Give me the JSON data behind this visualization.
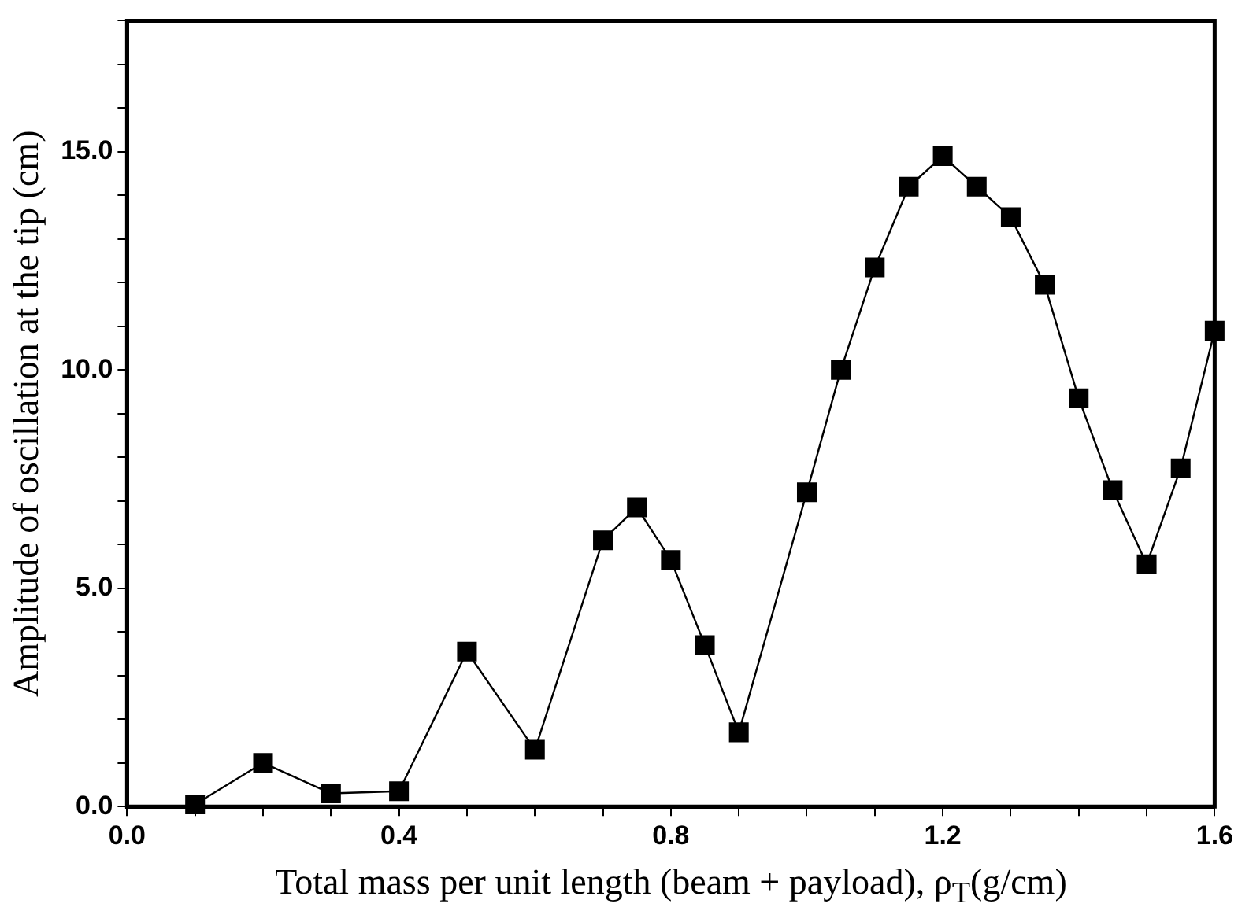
{
  "chart_data": {
    "type": "line",
    "xlabel": "Total mass per unit length (beam + payload), ρ$_{T}$(g/cm)",
    "ylabel": "Amplitude of oscillation at the tip (cm)",
    "x": [
      0.1,
      0.2,
      0.3,
      0.4,
      0.5,
      0.6,
      0.7,
      0.75,
      0.8,
      0.85,
      0.9,
      1.0,
      1.05,
      1.1,
      1.15,
      1.2,
      1.25,
      1.3,
      1.35,
      1.4,
      1.45,
      1.5,
      1.55,
      1.6
    ],
    "series": [
      {
        "color": "#000000",
        "values": [
          0.05,
          1.0,
          0.3,
          0.35,
          3.55,
          1.3,
          6.1,
          6.85,
          5.65,
          3.7,
          1.7,
          7.2,
          10.0,
          12.35,
          14.2,
          14.9,
          14.2,
          13.5,
          11.95,
          9.35,
          7.25,
          5.55,
          7.75,
          10.9
        ]
      }
    ],
    "xlim": [
      0,
      1.6
    ],
    "ylim": [
      0,
      18
    ],
    "xticks": [
      {
        "value": 0,
        "label": "0.0"
      },
      {
        "value": 0.1,
        "label": null
      },
      {
        "value": 0.2,
        "label": null
      },
      {
        "value": 0.3,
        "label": null
      },
      {
        "value": 0.4,
        "label": "0.4"
      },
      {
        "value": 0.5,
        "label": null
      },
      {
        "value": 0.6,
        "label": null
      },
      {
        "value": 0.7,
        "label": null
      },
      {
        "value": 0.8,
        "label": "0.8"
      },
      {
        "value": 0.9,
        "label": null
      },
      {
        "value": 1.0,
        "label": null
      },
      {
        "value": 1.1,
        "label": null
      },
      {
        "value": 1.2,
        "label": "1.2"
      },
      {
        "value": 1.3,
        "label": null
      },
      {
        "value": 1.4,
        "label": null
      },
      {
        "value": 1.5,
        "label": null
      },
      {
        "value": 1.6,
        "label": "1.6"
      }
    ],
    "yticks": [
      {
        "value": 0,
        "label": "0.0"
      },
      {
        "value": 1,
        "label": null
      },
      {
        "value": 2,
        "label": null
      },
      {
        "value": 3,
        "label": null
      },
      {
        "value": 4,
        "label": null
      },
      {
        "value": 5,
        "label": "5.0"
      },
      {
        "value": 6,
        "label": null
      },
      {
        "value": 7,
        "label": null
      },
      {
        "value": 8,
        "label": null
      },
      {
        "value": 9,
        "label": null
      },
      {
        "value": 10,
        "label": "10.0"
      },
      {
        "value": 11,
        "label": null
      },
      {
        "value": 12,
        "label": null
      },
      {
        "value": 13,
        "label": null
      },
      {
        "value": 14,
        "label": null
      },
      {
        "value": 15,
        "label": "15.0"
      },
      {
        "value": 16,
        "label": null
      },
      {
        "value": 17,
        "label": null
      },
      {
        "value": 18,
        "label": null
      }
    ],
    "grid": false,
    "legend": false,
    "marker": "square",
    "line_style": "solid"
  }
}
